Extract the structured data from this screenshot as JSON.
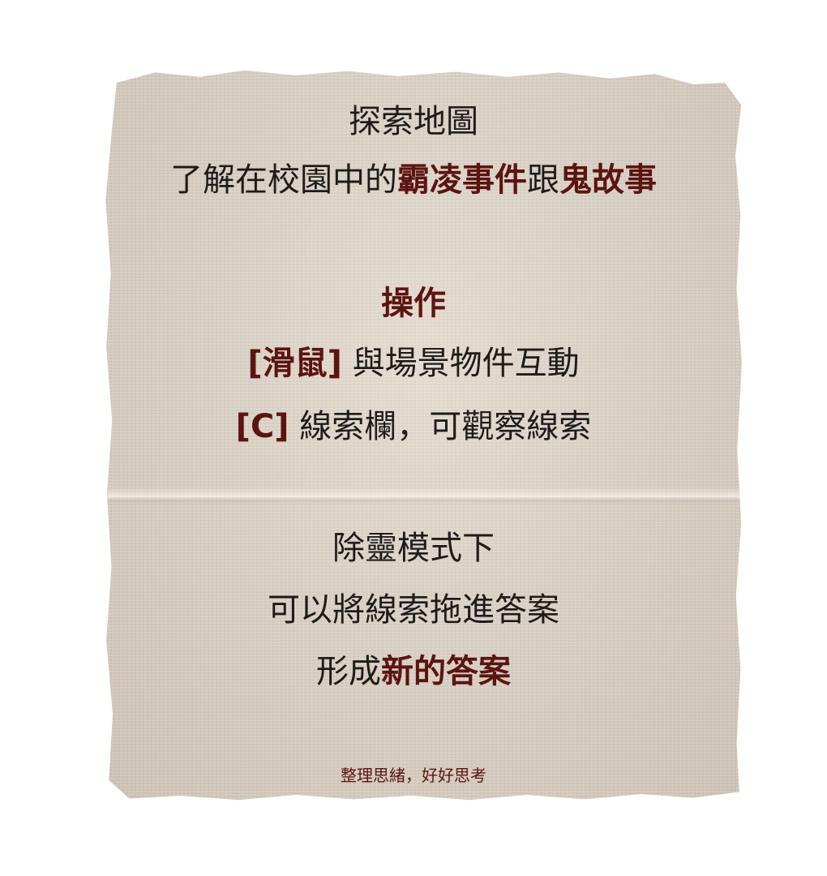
{
  "panel": {
    "title": "探索地圖",
    "intro": {
      "prefix": "了解在校園中的",
      "highlight1": "霸凌事件",
      "middle": "跟",
      "highlight2": "鬼故事"
    },
    "controls_heading": "操作",
    "mouse": {
      "key": "[滑鼠]",
      "text": " 與場景物件互動"
    },
    "clue": {
      "key": "[C]",
      "text": " 線索欄，可觀察線索"
    },
    "exorcism": {
      "line1": "除靈模式下",
      "line2": "可以將線索拖進答案",
      "line3_prefix": "形成",
      "line3_highlight": "新的答案"
    },
    "footer": "整理思緒，好好思考"
  },
  "colors": {
    "paper": "#d9cfc3",
    "text": "#1f1b19",
    "accent": "#5c1410"
  }
}
